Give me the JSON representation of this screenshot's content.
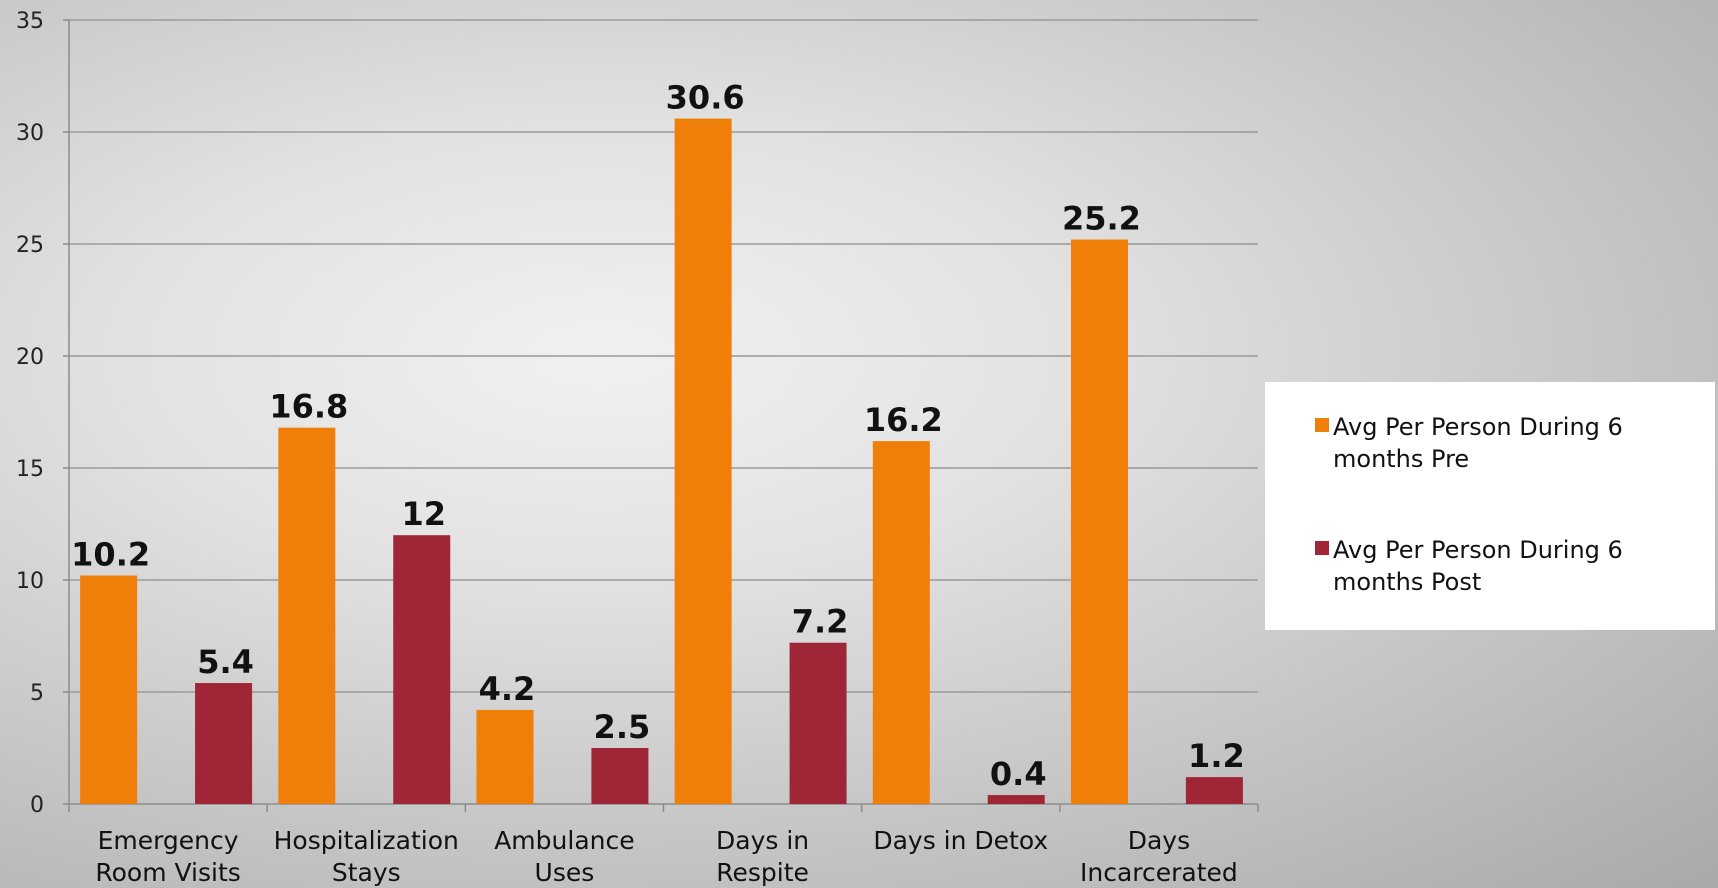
{
  "chart_data": {
    "type": "bar",
    "title": "",
    "xlabel": "",
    "ylabel": "",
    "ylim": [
      0,
      35
    ],
    "yticks": [
      0,
      5,
      10,
      15,
      20,
      25,
      30,
      35
    ],
    "grid": true,
    "legend_position": "right",
    "categories": [
      [
        "Emergency",
        "Room Visits"
      ],
      [
        "Hospitalization",
        "Stays"
      ],
      [
        "Ambulance",
        "Uses"
      ],
      [
        "Days in",
        "Respite"
      ],
      [
        "Days in Detox"
      ],
      [
        "Days",
        "Incarcerated"
      ]
    ],
    "series": [
      {
        "name": "Avg Per Person During 6 months Pre",
        "legend_lines": [
          "Avg Per Person During 6",
          "months Pre"
        ],
        "color": "#f07f09",
        "values": [
          10.2,
          16.8,
          4.2,
          30.6,
          16.2,
          25.2
        ],
        "labels": [
          "10.2",
          "16.8",
          "4.2",
          "30.6",
          "16.2",
          "25.2"
        ]
      },
      {
        "name": "Avg Per Person During 6 months Post",
        "legend_lines": [
          "Avg Per Person During 6",
          "months Post"
        ],
        "color": "#9e2637",
        "values": [
          5.4,
          12,
          2.5,
          7.2,
          0.4,
          1.2
        ],
        "labels": [
          "5.4",
          "12",
          "2.5",
          "7.2",
          "0.4",
          "1.2"
        ]
      }
    ]
  }
}
